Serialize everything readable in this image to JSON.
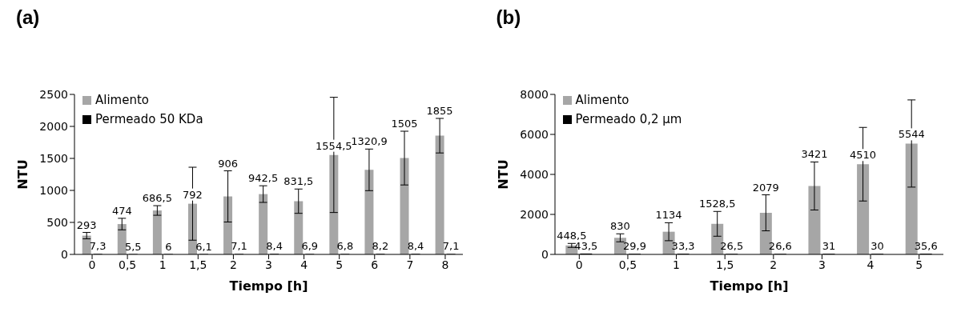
{
  "chart_data": [
    {
      "type": "bar",
      "title": "(a)",
      "xlabel": "Tiempo [h]",
      "ylabel": "NTU",
      "categories": [
        "0",
        "0,5",
        "1",
        "1,5",
        "2",
        "3",
        "4",
        "5",
        "6",
        "7",
        "8"
      ],
      "series": [
        {
          "name": "Alimento",
          "color": "#a6a6a6",
          "values": [
            293,
            474,
            686.5,
            792,
            906,
            942.5,
            831.5,
            1554.5,
            1320.9,
            1505,
            1855
          ],
          "errors": [
            50,
            90,
            75,
            570,
            400,
            130,
            190,
            900,
            325,
            420,
            270
          ],
          "value_labels": [
            "293",
            "474",
            "686,5",
            "792",
            "906",
            "942,5",
            "831,5",
            "1554,5",
            "1320,9",
            "1505",
            "1855"
          ]
        },
        {
          "name": "Permeado 50 KDa",
          "color": "#000000",
          "values": [
            7.3,
            5.5,
            6,
            6.1,
            7.1,
            8.4,
            6.9,
            6.8,
            8.2,
            8.4,
            7.1
          ],
          "value_labels": [
            "7,3",
            "5,5",
            "6",
            "6,1",
            "7,1",
            "8,4",
            "6,9",
            "6,8",
            "8,2",
            "8,4",
            "7,1"
          ]
        }
      ],
      "ylim": [
        0,
        2500
      ],
      "yticks": [
        0,
        500,
        1000,
        1500,
        2000,
        2500
      ],
      "grid": false,
      "legend": "top left"
    },
    {
      "type": "bar",
      "title": "(b)",
      "xlabel": "Tiempo [h]",
      "ylabel": "NTU",
      "categories": [
        "0",
        "0,5",
        "1",
        "1,5",
        "2",
        "3",
        "4",
        "5"
      ],
      "series": [
        {
          "name": "Alimento",
          "color": "#a6a6a6",
          "values": [
            448.5,
            830,
            1134,
            1528.5,
            2079,
            3421,
            4510,
            5544
          ],
          "errors": [
            100,
            200,
            450,
            620,
            900,
            1200,
            1840,
            2180
          ],
          "value_labels": [
            "448,5",
            "830",
            "1134",
            "1528,5",
            "2079",
            "3421",
            "4510",
            "5544"
          ]
        },
        {
          "name": "Permeado 0,2 µm",
          "color": "#000000",
          "values": [
            43.5,
            29.9,
            33.3,
            26.5,
            26.6,
            31,
            30,
            35.6
          ],
          "value_labels": [
            "43,5",
            "29,9",
            "33,3",
            "26,5",
            "26,6",
            "31",
            "30",
            "35,6"
          ]
        }
      ],
      "ylim": [
        0,
        8000
      ],
      "yticks": [
        0,
        2000,
        4000,
        6000,
        8000
      ],
      "grid": false,
      "legend": "top left"
    }
  ]
}
